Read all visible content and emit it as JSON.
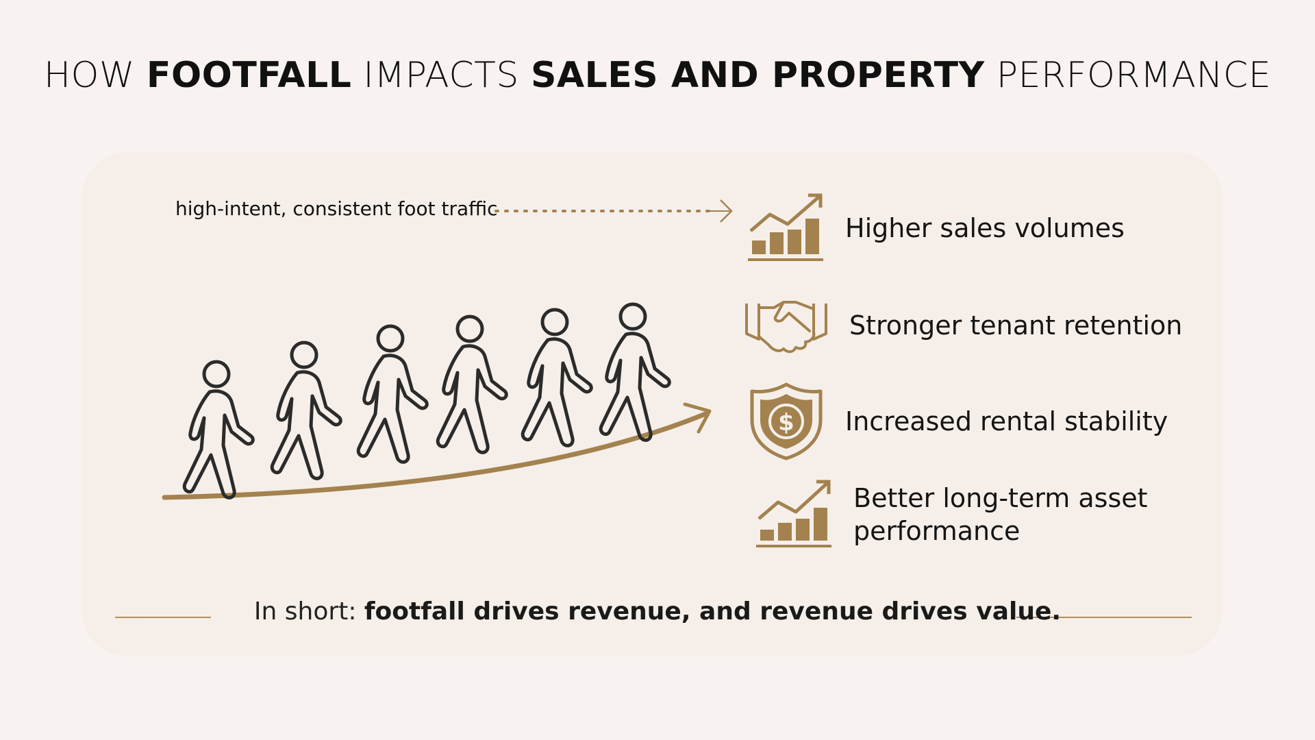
{
  "title": {
    "part1": "HOW ",
    "part2": "FOOTFALL",
    "part3": " IMPACTS ",
    "part4": "SALES AND PROPERTY",
    "part5": " PERFORMANCE"
  },
  "traffic_label": "high-intent, consistent foot traffic",
  "benefits": [
    {
      "icon": "bar-chart-growth-icon",
      "label": "Higher sales volumes"
    },
    {
      "icon": "handshake-icon",
      "label": "Stronger tenant retention"
    },
    {
      "icon": "dollar-shield-icon",
      "label": "Increased rental stability"
    },
    {
      "icon": "bar-chart-growth-icon",
      "label_line1": "Better long-term asset",
      "label_line2": "performance"
    }
  ],
  "summary": {
    "lead": "In short: ",
    "statement": "footfall drives revenue, and revenue drives value."
  },
  "colors": {
    "background": "#f8f3f1",
    "panel": "#f6efe9",
    "accent_gold": "#a3824f",
    "figure_stroke": "#2b2b2b"
  }
}
